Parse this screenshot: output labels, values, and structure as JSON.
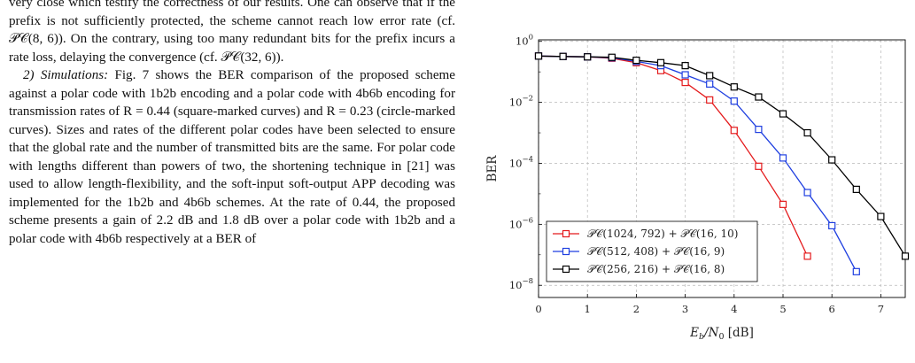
{
  "paper": {
    "paragraph1": "very close which testify the correctness of our results. One can observe that if the prefix is not sufficiently protected, the scheme cannot reach low error rate (cf. 𝒫𝒞(8, 6)). On the contrary, using too many redundant bits for the prefix incurs a rate loss, delaying the convergence (cf. 𝒫𝒞(32, 6)).",
    "section_label": "2) Simulations:",
    "paragraph2": " Fig. 7 shows the BER comparison of the proposed scheme against a polar code with 1b2b encoding and a polar code with 4b6b encoding for transmission rates of R = 0.44 (square-marked curves) and R = 0.23 (circle-marked curves). Sizes and rates of the different polar codes have been selected to ensure that the global rate and the number of transmitted bits are the same. For polar code with lengths different than powers of two, the shortening technique in [21] was used to allow length-flexibility, and the soft-input soft-output APP decoding was implemented for the 1b2b and 4b6b schemes. At the rate of 0.44, the proposed scheme presents a gain of 2.2 dB and 1.8 dB over a polar code with 1b2b and a polar code with 4b6b respectively at a BER of"
  },
  "chart_data": {
    "type": "line",
    "title": "",
    "xlabel": "E_b/N_0 [dB]",
    "ylabel": "BER",
    "xlim": [
      0,
      7.5
    ],
    "ylim_log10": [
      -8.4,
      0.05
    ],
    "log_scale_y": true,
    "grid": true,
    "marker": "square",
    "legend_position": "bottom-left",
    "x_ticks": [
      "0",
      "1",
      "2",
      "3",
      "4",
      "5",
      "6",
      "7"
    ],
    "y_ticks": [
      {
        "base": "10",
        "exp": "0",
        "log10": 0
      },
      {
        "base": "10",
        "exp": "−2",
        "log10": -2
      },
      {
        "base": "10",
        "exp": "−4",
        "log10": -4
      },
      {
        "base": "10",
        "exp": "−6",
        "log10": -6
      },
      {
        "base": "10",
        "exp": "−8",
        "log10": -8
      }
    ],
    "series": [
      {
        "name": "𝒫𝒞(1024, 792) + 𝒫𝒞(16, 10)",
        "color": "#e41a1c",
        "x": [
          0,
          0.5,
          1,
          1.5,
          2,
          2.5,
          3,
          3.5,
          4,
          4.5,
          5,
          5.5
        ],
        "y": [
          0.33,
          0.32,
          0.31,
          0.28,
          0.2,
          0.11,
          0.045,
          0.012,
          0.0012,
          8e-05,
          4.5e-06,
          9e-08
        ]
      },
      {
        "name": "𝒫𝒞(512, 408) + 𝒫𝒞(16, 9)",
        "color": "#1f3fe0",
        "x": [
          0,
          0.5,
          1,
          1.5,
          2,
          2.5,
          3,
          3.5,
          4,
          4.5,
          5,
          5.5,
          6,
          6.5
        ],
        "y": [
          0.33,
          0.32,
          0.31,
          0.29,
          0.22,
          0.16,
          0.08,
          0.04,
          0.011,
          0.0013,
          0.00015,
          1.1e-05,
          9e-07,
          2.8e-08
        ]
      },
      {
        "name": "𝒫𝒞(256, 216) + 𝒫𝒞(16, 8)",
        "color": "#000000",
        "x": [
          0,
          0.5,
          1,
          1.5,
          2,
          2.5,
          3,
          3.5,
          4,
          4.5,
          5,
          5.5,
          6,
          6.5,
          7,
          7.5
        ],
        "y": [
          0.33,
          0.32,
          0.31,
          0.3,
          0.24,
          0.2,
          0.16,
          0.075,
          0.032,
          0.015,
          0.0042,
          0.001,
          0.00013,
          1.4e-05,
          1.8e-06,
          9e-08
        ]
      }
    ]
  }
}
